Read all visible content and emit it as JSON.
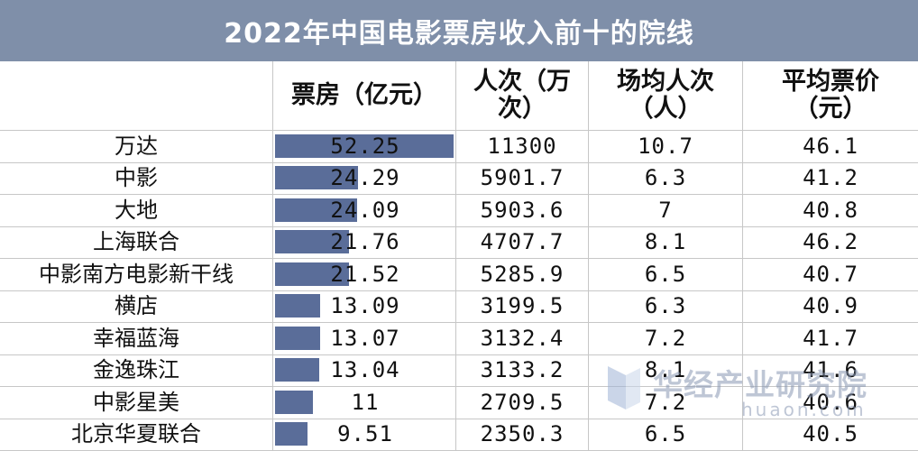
{
  "title": "2022年中国电影票房收入前十的院线",
  "headers": {
    "name": "",
    "box_office": "票房（亿元）",
    "attendance_l1": "人次（万",
    "attendance_l2": "次）",
    "avg_per_show_l1": "场均人次",
    "avg_per_show_l2": "（人）",
    "avg_price_l1": "平均票价",
    "avg_price_l2": "（元）"
  },
  "chart_data": {
    "type": "table",
    "title": "2022年中国电影票房收入前十的院线",
    "columns": [
      "",
      "票房（亿元）",
      "人次（万次）",
      "场均人次（人）",
      "平均票价（元）"
    ],
    "bar_column": "票房（亿元）",
    "bar_max": 52.25,
    "rows": [
      {
        "name": "万达",
        "box_office": "52.25",
        "attendance": "11300",
        "avg_per_show": "10.7",
        "avg_price": "46.1"
      },
      {
        "name": "中影",
        "box_office": "24.29",
        "attendance": "5901.7",
        "avg_per_show": "6.3",
        "avg_price": "41.2"
      },
      {
        "name": "大地",
        "box_office": "24.09",
        "attendance": "5903.6",
        "avg_per_show": "7",
        "avg_price": "40.8"
      },
      {
        "name": "上海联合",
        "box_office": "21.76",
        "attendance": "4707.7",
        "avg_per_show": "8.1",
        "avg_price": "46.2"
      },
      {
        "name": "中影南方电影新干线",
        "box_office": "21.52",
        "attendance": "5285.9",
        "avg_per_show": "6.5",
        "avg_price": "40.7"
      },
      {
        "name": "横店",
        "box_office": "13.09",
        "attendance": "3199.5",
        "avg_per_show": "6.3",
        "avg_price": "40.9"
      },
      {
        "name": "幸福蓝海",
        "box_office": "13.07",
        "attendance": "3132.4",
        "avg_per_show": "7.2",
        "avg_price": "41.7"
      },
      {
        "name": "金逸珠江",
        "box_office": "13.04",
        "attendance": "3133.2",
        "avg_per_show": "8.1",
        "avg_price": "41.6"
      },
      {
        "name": "中影星美",
        "box_office": "11",
        "attendance": "2709.5",
        "avg_per_show": "7.2",
        "avg_price": "40.6"
      },
      {
        "name": "北京华夏联合",
        "box_office": "9.51",
        "attendance": "2350.3",
        "avg_per_show": "6.5",
        "avg_price": "40.5"
      }
    ]
  },
  "colors": {
    "title_bg": "#7f8fa9",
    "bar": "#5a6d99",
    "grid": "#c7c7c7"
  },
  "watermark": {
    "text": "华经产业研究院",
    "url": "huaon.com"
  }
}
